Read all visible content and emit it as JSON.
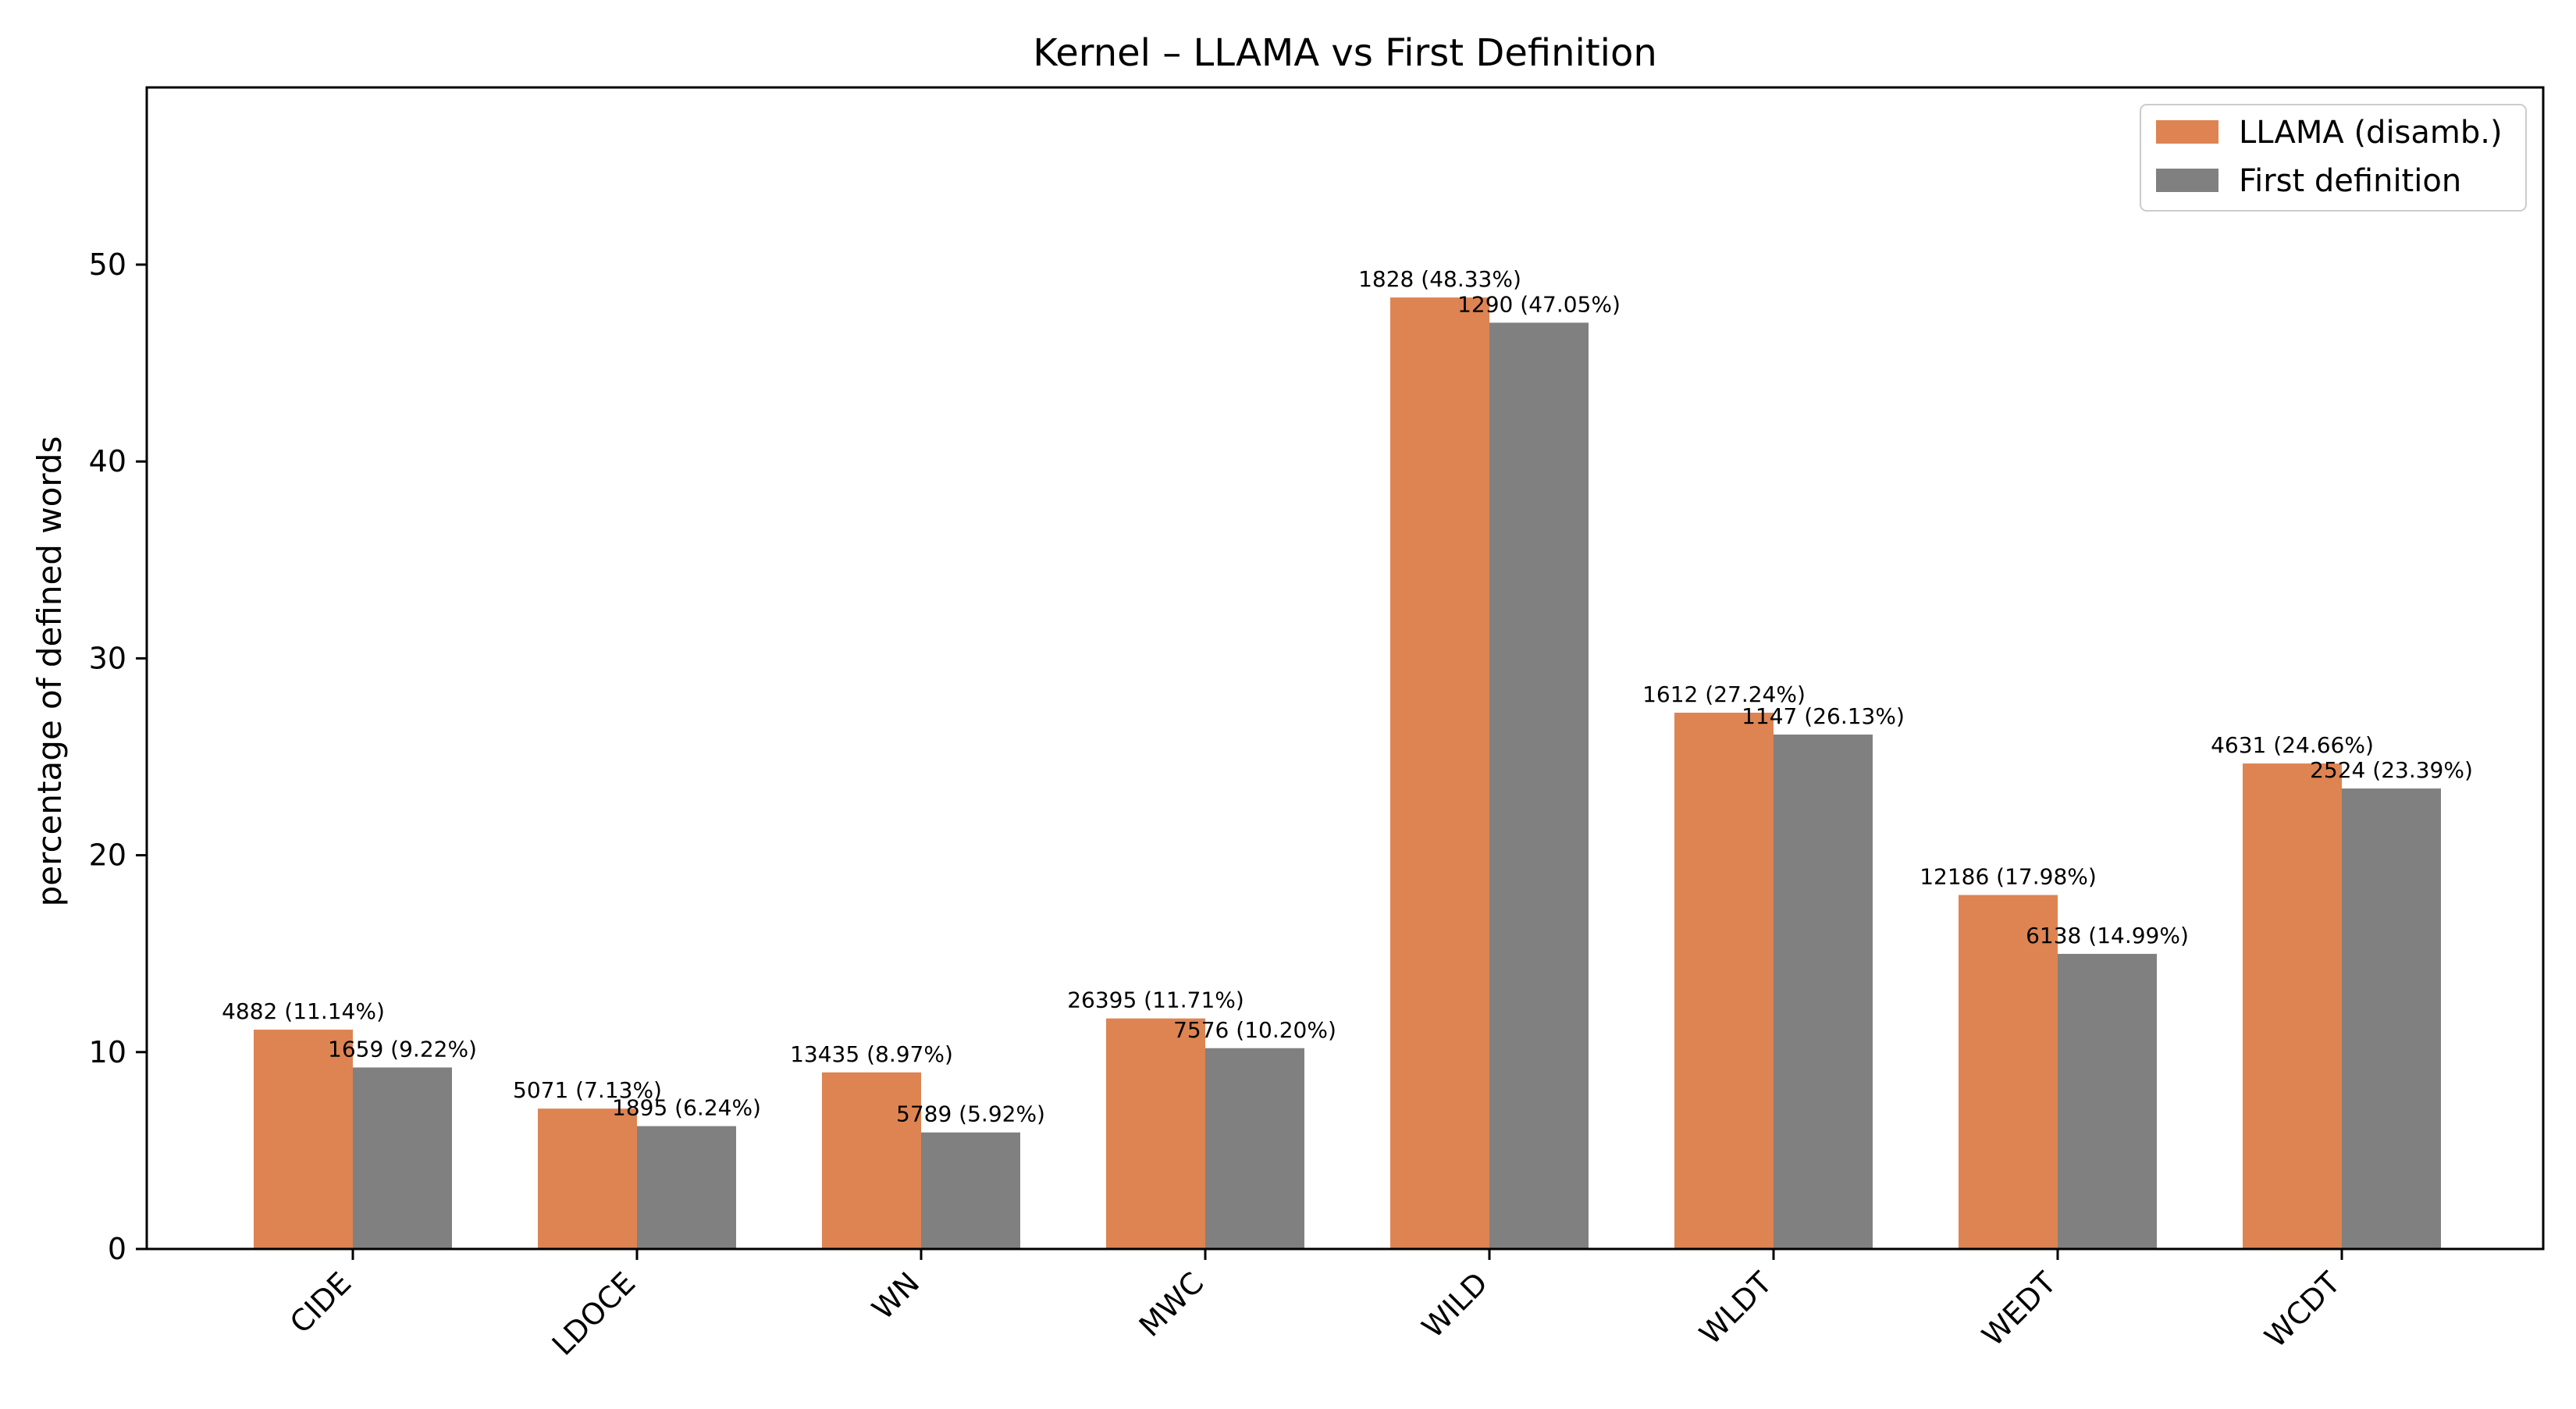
{
  "chart_data": {
    "type": "bar",
    "title": "Kernel – LLAMA vs First Definition",
    "xlabel": "",
    "ylabel": "percentage of defined words",
    "ylim": [
      0,
      59
    ],
    "yticks": [
      0,
      10,
      20,
      30,
      40,
      50
    ],
    "grid": false,
    "legend_position": "top-right",
    "categories": [
      "CIDE",
      "LDOCE",
      "WN",
      "MWC",
      "WILD",
      "WLDT",
      "WEDT",
      "WCDT"
    ],
    "series": [
      {
        "name": "LLAMA (disamb.)",
        "color": "#dd8452",
        "values": [
          11.14,
          7.13,
          8.97,
          11.71,
          48.33,
          27.24,
          17.98,
          24.66
        ],
        "labels": [
          "4882 (11.14%)",
          "5071 (7.13%)",
          "13435 (8.97%)",
          "26395 (11.71%)",
          "1828 (48.33%)",
          "1612 (27.24%)",
          "12186 (17.98%)",
          "4631 (24.66%)"
        ]
      },
      {
        "name": "First definition",
        "color": "#808080",
        "values": [
          9.22,
          6.24,
          5.92,
          10.2,
          47.05,
          26.13,
          14.99,
          23.39
        ],
        "labels": [
          "1659 (9.22%)",
          "1895 (6.24%)",
          "5789 (5.92%)",
          "7576 (10.20%)",
          "1290 (47.05%)",
          "1147 (26.13%)",
          "6138 (14.99%)",
          "2524 (23.39%)"
        ]
      }
    ]
  }
}
